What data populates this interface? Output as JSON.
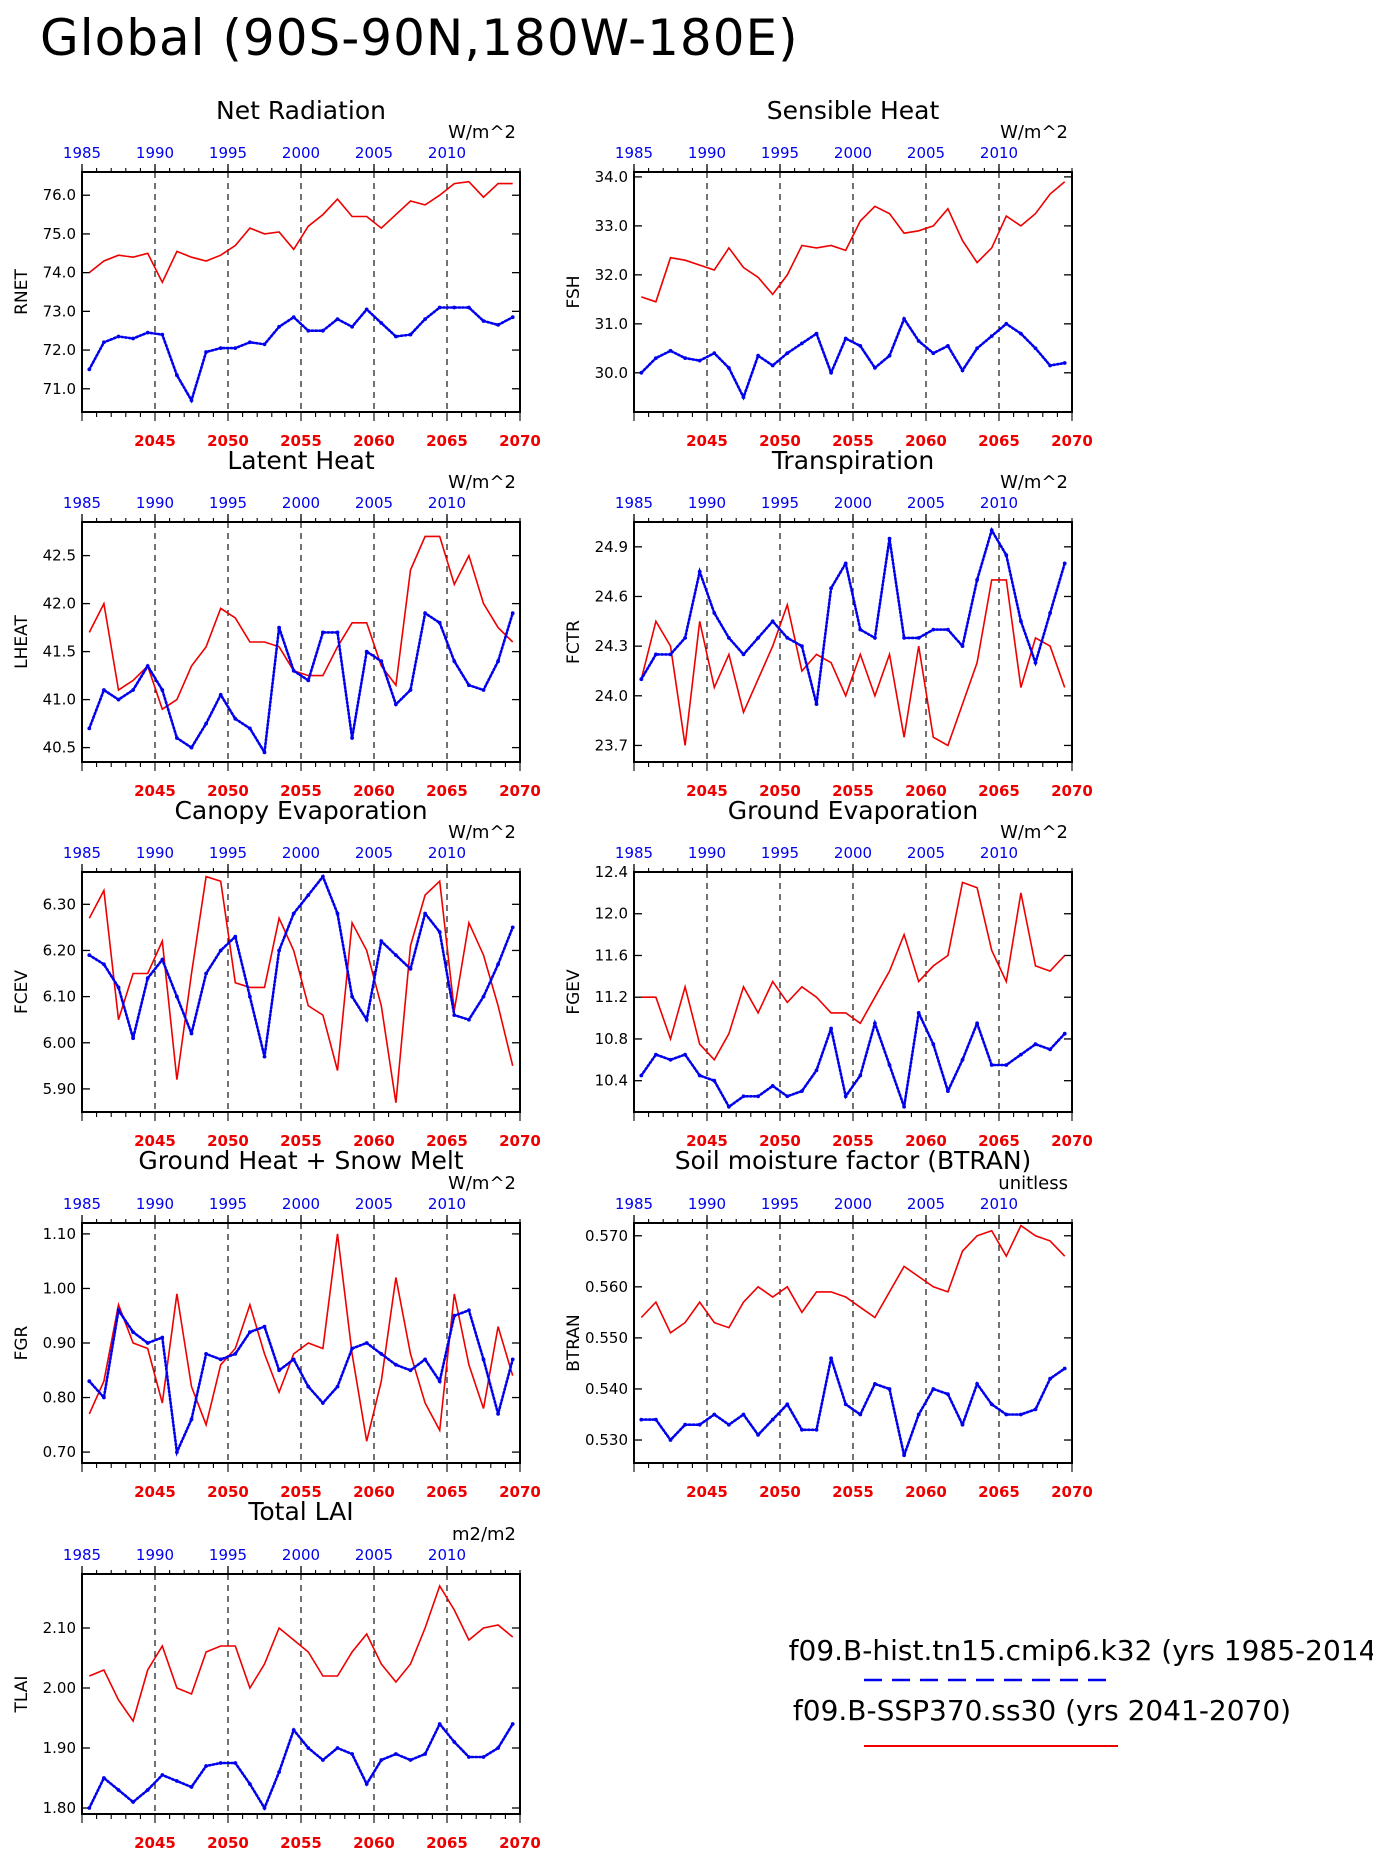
{
  "title": "Global (90S-90N,180W-180E)",
  "colors": {
    "hist": "#0000ee",
    "ssp": "#ee0000",
    "axis": "#000000"
  },
  "legend": {
    "hist_label": "f09.B-hist.tn15.cmip6.k32 (yrs 1985-2014)",
    "ssp_label": "f09.B-SSP370.ss30 (yrs 2041-2070)"
  },
  "chart_data": [
    {
      "type": "line",
      "title": "Net Radiation",
      "units": "W/m^2",
      "ylabel": "RNET",
      "ylim": [
        70.4,
        76.6
      ],
      "yticks": [
        "71.0",
        "72.0",
        "73.0",
        "74.0",
        "75.0",
        "76.0"
      ],
      "x_top": [
        "1985",
        "1990",
        "1995",
        "2000",
        "2005",
        "2010"
      ],
      "x_bottom": [
        "2045",
        "2050",
        "2055",
        "2060",
        "2065",
        "2070"
      ],
      "series": [
        {
          "years": "1985-2014",
          "values": [
            71.5,
            72.2,
            72.35,
            72.3,
            72.45,
            72.4,
            71.35,
            70.7,
            71.95,
            72.05,
            72.05,
            72.2,
            72.15,
            72.6,
            72.85,
            72.5,
            72.5,
            72.8,
            72.6,
            73.05,
            72.7,
            72.35,
            72.4,
            72.8,
            73.1,
            73.1,
            73.1,
            72.75,
            72.65,
            72.85
          ]
        },
        {
          "years": "2041-2070",
          "values": [
            74.0,
            74.3,
            74.45,
            74.4,
            74.5,
            73.75,
            74.55,
            74.4,
            74.3,
            74.45,
            74.7,
            75.15,
            75.0,
            75.05,
            74.6,
            75.2,
            75.5,
            75.9,
            75.45,
            75.45,
            75.15,
            75.5,
            75.85,
            75.75,
            76.0,
            76.3,
            76.35,
            75.95,
            76.3,
            76.3
          ]
        }
      ]
    },
    {
      "type": "line",
      "title": "Sensible Heat",
      "units": "W/m^2",
      "ylabel": "FSH",
      "ylim": [
        29.2,
        34.1
      ],
      "yticks": [
        "30.0",
        "31.0",
        "32.0",
        "33.0",
        "34.0"
      ],
      "x_top": [
        "1985",
        "1990",
        "1995",
        "2000",
        "2005",
        "2010"
      ],
      "x_bottom": [
        "2045",
        "2050",
        "2055",
        "2060",
        "2065",
        "2070"
      ],
      "series": [
        {
          "years": "1985-2014",
          "values": [
            30.0,
            30.3,
            30.45,
            30.3,
            30.25,
            30.4,
            30.1,
            29.5,
            30.35,
            30.15,
            30.4,
            30.6,
            30.8,
            30.0,
            30.7,
            30.55,
            30.1,
            30.35,
            31.1,
            30.65,
            30.4,
            30.55,
            30.05,
            30.5,
            30.75,
            31.0,
            30.8,
            30.5,
            30.15,
            30.2
          ]
        },
        {
          "years": "2041-2070",
          "values": [
            31.55,
            31.45,
            32.35,
            32.3,
            32.2,
            32.1,
            32.55,
            32.15,
            31.95,
            31.6,
            32.0,
            32.6,
            32.55,
            32.6,
            32.5,
            33.1,
            33.4,
            33.25,
            32.85,
            32.9,
            33.0,
            33.35,
            32.7,
            32.25,
            32.55,
            33.2,
            33.0,
            33.25,
            33.65,
            33.9
          ]
        }
      ]
    },
    {
      "type": "line",
      "title": "Latent Heat",
      "units": "W/m^2",
      "ylabel": "LHEAT",
      "ylim": [
        40.35,
        42.85
      ],
      "yticks": [
        "40.5",
        "41.0",
        "41.5",
        "42.0",
        "42.5"
      ],
      "x_top": [
        "1985",
        "1990",
        "1995",
        "2000",
        "2005",
        "2010"
      ],
      "x_bottom": [
        "2045",
        "2050",
        "2055",
        "2060",
        "2065",
        "2070"
      ],
      "series": [
        {
          "years": "1985-2014",
          "values": [
            40.7,
            41.1,
            41.0,
            41.1,
            41.35,
            41.1,
            40.6,
            40.5,
            40.75,
            41.05,
            40.8,
            40.7,
            40.45,
            41.75,
            41.3,
            41.2,
            41.7,
            41.7,
            40.6,
            41.5,
            41.4,
            40.95,
            41.1,
            41.9,
            41.8,
            41.4,
            41.15,
            41.1,
            41.4,
            41.9
          ]
        },
        {
          "years": "2041-2070",
          "values": [
            41.7,
            42.0,
            41.1,
            41.2,
            41.35,
            40.9,
            41.0,
            41.35,
            41.55,
            41.95,
            41.85,
            41.6,
            41.6,
            41.55,
            41.3,
            41.25,
            41.25,
            41.55,
            41.8,
            41.8,
            41.35,
            41.15,
            42.35,
            42.7,
            42.7,
            42.2,
            42.5,
            42.0,
            41.75,
            41.6
          ]
        }
      ]
    },
    {
      "type": "line",
      "title": "Transpiration",
      "units": "W/m^2",
      "ylabel": "FCTR",
      "ylim": [
        23.6,
        25.05
      ],
      "yticks": [
        "23.7",
        "24.0",
        "24.3",
        "24.6",
        "24.9"
      ],
      "x_top": [
        "1985",
        "1990",
        "1995",
        "2000",
        "2005",
        "2010"
      ],
      "x_bottom": [
        "2045",
        "2050",
        "2055",
        "2060",
        "2065",
        "2070"
      ],
      "series": [
        {
          "years": "1985-2014",
          "values": [
            24.1,
            24.25,
            24.25,
            24.35,
            24.75,
            24.5,
            24.35,
            24.25,
            24.35,
            24.45,
            24.35,
            24.3,
            23.95,
            24.65,
            24.8,
            24.4,
            24.35,
            24.95,
            24.35,
            24.35,
            24.4,
            24.4,
            24.3,
            24.7,
            25.0,
            24.85,
            24.45,
            24.2,
            24.5,
            24.8
          ]
        },
        {
          "years": "2041-2070",
          "values": [
            24.1,
            24.45,
            24.3,
            23.7,
            24.45,
            24.05,
            24.25,
            23.9,
            24.1,
            24.3,
            24.55,
            24.15,
            24.25,
            24.2,
            24.0,
            24.25,
            24.0,
            24.25,
            23.75,
            24.3,
            23.75,
            23.7,
            23.95,
            24.2,
            24.7,
            24.7,
            24.05,
            24.35,
            24.3,
            24.05
          ]
        }
      ]
    },
    {
      "type": "line",
      "title": "Canopy Evaporation",
      "units": "W/m^2",
      "ylabel": "FCEV",
      "ylim": [
        5.85,
        6.37
      ],
      "yticks": [
        "5.90",
        "6.00",
        "6.10",
        "6.20",
        "6.30"
      ],
      "x_top": [
        "1985",
        "1990",
        "1995",
        "2000",
        "2005",
        "2010"
      ],
      "x_bottom": [
        "2045",
        "2050",
        "2055",
        "2060",
        "2065",
        "2070"
      ],
      "series": [
        {
          "years": "1985-2014",
          "values": [
            6.19,
            6.17,
            6.12,
            6.01,
            6.14,
            6.18,
            6.1,
            6.02,
            6.15,
            6.2,
            6.23,
            6.1,
            5.97,
            6.2,
            6.28,
            6.32,
            6.36,
            6.28,
            6.1,
            6.05,
            6.22,
            6.19,
            6.16,
            6.28,
            6.24,
            6.06,
            6.05,
            6.1,
            6.17,
            6.25
          ]
        },
        {
          "years": "2041-2070",
          "values": [
            6.27,
            6.33,
            6.05,
            6.15,
            6.15,
            6.22,
            5.92,
            6.15,
            6.36,
            6.35,
            6.13,
            6.12,
            6.12,
            6.27,
            6.2,
            6.08,
            6.06,
            5.94,
            6.26,
            6.2,
            6.08,
            5.87,
            6.21,
            6.32,
            6.35,
            6.07,
            6.26,
            6.19,
            6.08,
            5.95
          ]
        }
      ]
    },
    {
      "type": "line",
      "title": "Ground Evaporation",
      "units": "W/m^2",
      "ylabel": "FGEV",
      "ylim": [
        10.1,
        12.4
      ],
      "yticks": [
        "10.4",
        "10.8",
        "11.2",
        "11.6",
        "12.0",
        "12.4"
      ],
      "x_top": [
        "1985",
        "1990",
        "1995",
        "2000",
        "2005",
        "2010"
      ],
      "x_bottom": [
        "2045",
        "2050",
        "2055",
        "2060",
        "2065",
        "2070"
      ],
      "series": [
        {
          "years": "1985-2014",
          "values": [
            10.45,
            10.65,
            10.6,
            10.65,
            10.45,
            10.4,
            10.15,
            10.25,
            10.25,
            10.35,
            10.25,
            10.3,
            10.5,
            10.9,
            10.25,
            10.45,
            10.95,
            10.55,
            10.15,
            11.05,
            10.75,
            10.3,
            10.6,
            10.95,
            10.55,
            10.55,
            10.65,
            10.75,
            10.7,
            10.85
          ]
        },
        {
          "years": "2041-2070",
          "values": [
            11.2,
            11.2,
            10.8,
            11.3,
            10.75,
            10.6,
            10.85,
            11.3,
            11.05,
            11.35,
            11.15,
            11.3,
            11.2,
            11.05,
            11.05,
            10.95,
            11.2,
            11.45,
            11.8,
            11.35,
            11.5,
            11.6,
            12.3,
            12.25,
            11.65,
            11.35,
            12.2,
            11.5,
            11.45,
            11.6
          ]
        }
      ]
    },
    {
      "type": "line",
      "title": "Ground Heat + Snow Melt",
      "units": "W/m^2",
      "ylabel": "FGR",
      "ylim": [
        0.68,
        1.12
      ],
      "yticks": [
        "0.70",
        "0.80",
        "0.90",
        "1.00",
        "1.10"
      ],
      "x_top": [
        "1985",
        "1990",
        "1995",
        "2000",
        "2005",
        "2010"
      ],
      "x_bottom": [
        "2045",
        "2050",
        "2055",
        "2060",
        "2065",
        "2070"
      ],
      "series": [
        {
          "years": "1985-2014",
          "values": [
            0.83,
            0.8,
            0.96,
            0.92,
            0.9,
            0.91,
            0.7,
            0.76,
            0.88,
            0.87,
            0.88,
            0.92,
            0.93,
            0.85,
            0.87,
            0.82,
            0.79,
            0.82,
            0.89,
            0.9,
            0.88,
            0.86,
            0.85,
            0.87,
            0.83,
            0.95,
            0.96,
            0.87,
            0.77,
            0.87
          ]
        },
        {
          "years": "2041-2070",
          "values": [
            0.77,
            0.83,
            0.97,
            0.9,
            0.89,
            0.79,
            0.99,
            0.82,
            0.75,
            0.86,
            0.89,
            0.97,
            0.88,
            0.81,
            0.88,
            0.9,
            0.89,
            1.1,
            0.88,
            0.72,
            0.83,
            1.02,
            0.88,
            0.79,
            0.74,
            0.99,
            0.86,
            0.78,
            0.93,
            0.84
          ]
        }
      ]
    },
    {
      "type": "line",
      "title": "Soil moisture factor (BTRAN)",
      "units": "unitless",
      "ylabel": "BTRAN",
      "ylim": [
        0.5255,
        0.5725
      ],
      "yticks": [
        "0.530",
        "0.540",
        "0.550",
        "0.560",
        "0.570"
      ],
      "x_top": [
        "1985",
        "1990",
        "1995",
        "2000",
        "2005",
        "2010"
      ],
      "x_bottom": [
        "2045",
        "2050",
        "2055",
        "2060",
        "2065",
        "2070"
      ],
      "series": [
        {
          "years": "1985-2014",
          "values": [
            0.534,
            0.534,
            0.53,
            0.533,
            0.533,
            0.535,
            0.533,
            0.535,
            0.531,
            0.534,
            0.537,
            0.532,
            0.532,
            0.546,
            0.537,
            0.535,
            0.541,
            0.54,
            0.527,
            0.535,
            0.54,
            0.539,
            0.533,
            0.541,
            0.537,
            0.535,
            0.535,
            0.536,
            0.542,
            0.544
          ]
        },
        {
          "years": "2041-2070",
          "values": [
            0.554,
            0.557,
            0.551,
            0.553,
            0.557,
            0.553,
            0.552,
            0.557,
            0.56,
            0.558,
            0.56,
            0.555,
            0.559,
            0.559,
            0.558,
            0.556,
            0.554,
            0.559,
            0.564,
            0.562,
            0.56,
            0.559,
            0.567,
            0.57,
            0.571,
            0.566,
            0.572,
            0.57,
            0.569,
            0.566
          ]
        }
      ]
    },
    {
      "type": "line",
      "title": "Total LAI",
      "units": "m2/m2",
      "ylabel": "TLAI",
      "ylim": [
        1.79,
        2.19
      ],
      "yticks": [
        "1.80",
        "1.90",
        "2.00",
        "2.10"
      ],
      "x_top": [
        "1985",
        "1990",
        "1995",
        "2000",
        "2005",
        "2010"
      ],
      "x_bottom": [
        "2045",
        "2050",
        "2055",
        "2060",
        "2065",
        "2070"
      ],
      "series": [
        {
          "years": "1985-2014",
          "values": [
            1.8,
            1.85,
            1.83,
            1.81,
            1.83,
            1.855,
            1.845,
            1.835,
            1.87,
            1.875,
            1.875,
            1.84,
            1.8,
            1.86,
            1.93,
            1.9,
            1.88,
            1.9,
            1.89,
            1.84,
            1.88,
            1.89,
            1.88,
            1.89,
            1.94,
            1.91,
            1.885,
            1.885,
            1.9,
            1.94
          ]
        },
        {
          "years": "2041-2070",
          "values": [
            2.02,
            2.03,
            1.98,
            1.945,
            2.03,
            2.07,
            2.0,
            1.99,
            2.06,
            2.07,
            2.07,
            2.0,
            2.04,
            2.1,
            2.08,
            2.06,
            2.02,
            2.02,
            2.06,
            2.09,
            2.04,
            2.01,
            2.04,
            2.1,
            2.17,
            2.13,
            2.08,
            2.1,
            2.105,
            2.085
          ]
        }
      ]
    }
  ]
}
